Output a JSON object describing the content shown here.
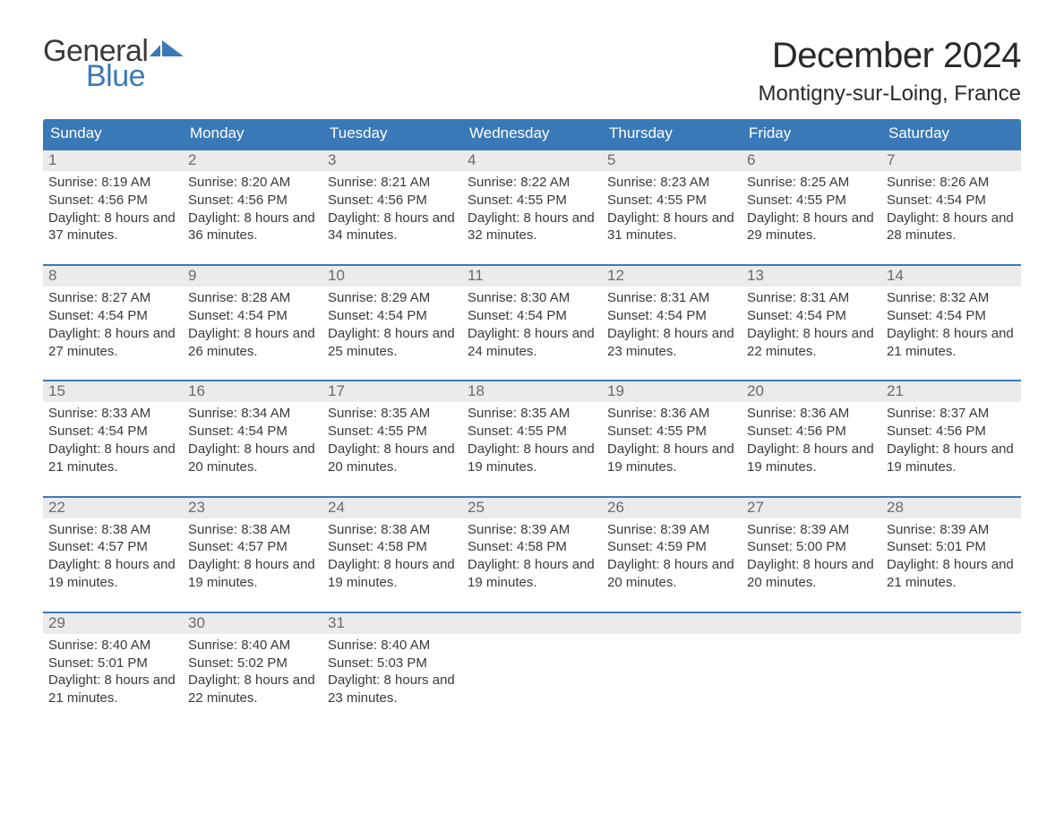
{
  "logo": {
    "word1": "General",
    "word2": "Blue",
    "flag_color": "#3a79b7",
    "text_color_1": "#3a3a3a",
    "text_color_2": "#3a79b7"
  },
  "title": "December 2024",
  "location": "Montigny-sur-Loing, France",
  "colors": {
    "header_bg": "#3a79b7",
    "header_text": "#ffffff",
    "row_accent": "#3a79b7",
    "daynum_bg": "#ebebeb",
    "daynum_text": "#6a6a6a",
    "body_text": "#3a3a3a",
    "background": "#ffffff"
  },
  "typography": {
    "title_fontsize_pt": 30,
    "location_fontsize_pt": 18,
    "header_fontsize_pt": 13,
    "daynum_fontsize_pt": 13,
    "body_fontsize_pt": 11,
    "font_family": "Arial"
  },
  "day_headers": [
    "Sunday",
    "Monday",
    "Tuesday",
    "Wednesday",
    "Thursday",
    "Friday",
    "Saturday"
  ],
  "weeks": [
    [
      {
        "n": "1",
        "sunrise": "8:19 AM",
        "sunset": "4:56 PM",
        "daylight": "8 hours and 37 minutes."
      },
      {
        "n": "2",
        "sunrise": "8:20 AM",
        "sunset": "4:56 PM",
        "daylight": "8 hours and 36 minutes."
      },
      {
        "n": "3",
        "sunrise": "8:21 AM",
        "sunset": "4:56 PM",
        "daylight": "8 hours and 34 minutes."
      },
      {
        "n": "4",
        "sunrise": "8:22 AM",
        "sunset": "4:55 PM",
        "daylight": "8 hours and 32 minutes."
      },
      {
        "n": "5",
        "sunrise": "8:23 AM",
        "sunset": "4:55 PM",
        "daylight": "8 hours and 31 minutes."
      },
      {
        "n": "6",
        "sunrise": "8:25 AM",
        "sunset": "4:55 PM",
        "daylight": "8 hours and 29 minutes."
      },
      {
        "n": "7",
        "sunrise": "8:26 AM",
        "sunset": "4:54 PM",
        "daylight": "8 hours and 28 minutes."
      }
    ],
    [
      {
        "n": "8",
        "sunrise": "8:27 AM",
        "sunset": "4:54 PM",
        "daylight": "8 hours and 27 minutes."
      },
      {
        "n": "9",
        "sunrise": "8:28 AM",
        "sunset": "4:54 PM",
        "daylight": "8 hours and 26 minutes."
      },
      {
        "n": "10",
        "sunrise": "8:29 AM",
        "sunset": "4:54 PM",
        "daylight": "8 hours and 25 minutes."
      },
      {
        "n": "11",
        "sunrise": "8:30 AM",
        "sunset": "4:54 PM",
        "daylight": "8 hours and 24 minutes."
      },
      {
        "n": "12",
        "sunrise": "8:31 AM",
        "sunset": "4:54 PM",
        "daylight": "8 hours and 23 minutes."
      },
      {
        "n": "13",
        "sunrise": "8:31 AM",
        "sunset": "4:54 PM",
        "daylight": "8 hours and 22 minutes."
      },
      {
        "n": "14",
        "sunrise": "8:32 AM",
        "sunset": "4:54 PM",
        "daylight": "8 hours and 21 minutes."
      }
    ],
    [
      {
        "n": "15",
        "sunrise": "8:33 AM",
        "sunset": "4:54 PM",
        "daylight": "8 hours and 21 minutes."
      },
      {
        "n": "16",
        "sunrise": "8:34 AM",
        "sunset": "4:54 PM",
        "daylight": "8 hours and 20 minutes."
      },
      {
        "n": "17",
        "sunrise": "8:35 AM",
        "sunset": "4:55 PM",
        "daylight": "8 hours and 20 minutes."
      },
      {
        "n": "18",
        "sunrise": "8:35 AM",
        "sunset": "4:55 PM",
        "daylight": "8 hours and 19 minutes."
      },
      {
        "n": "19",
        "sunrise": "8:36 AM",
        "sunset": "4:55 PM",
        "daylight": "8 hours and 19 minutes."
      },
      {
        "n": "20",
        "sunrise": "8:36 AM",
        "sunset": "4:56 PM",
        "daylight": "8 hours and 19 minutes."
      },
      {
        "n": "21",
        "sunrise": "8:37 AM",
        "sunset": "4:56 PM",
        "daylight": "8 hours and 19 minutes."
      }
    ],
    [
      {
        "n": "22",
        "sunrise": "8:38 AM",
        "sunset": "4:57 PM",
        "daylight": "8 hours and 19 minutes."
      },
      {
        "n": "23",
        "sunrise": "8:38 AM",
        "sunset": "4:57 PM",
        "daylight": "8 hours and 19 minutes."
      },
      {
        "n": "24",
        "sunrise": "8:38 AM",
        "sunset": "4:58 PM",
        "daylight": "8 hours and 19 minutes."
      },
      {
        "n": "25",
        "sunrise": "8:39 AM",
        "sunset": "4:58 PM",
        "daylight": "8 hours and 19 minutes."
      },
      {
        "n": "26",
        "sunrise": "8:39 AM",
        "sunset": "4:59 PM",
        "daylight": "8 hours and 20 minutes."
      },
      {
        "n": "27",
        "sunrise": "8:39 AM",
        "sunset": "5:00 PM",
        "daylight": "8 hours and 20 minutes."
      },
      {
        "n": "28",
        "sunrise": "8:39 AM",
        "sunset": "5:01 PM",
        "daylight": "8 hours and 21 minutes."
      }
    ],
    [
      {
        "n": "29",
        "sunrise": "8:40 AM",
        "sunset": "5:01 PM",
        "daylight": "8 hours and 21 minutes."
      },
      {
        "n": "30",
        "sunrise": "8:40 AM",
        "sunset": "5:02 PM",
        "daylight": "8 hours and 22 minutes."
      },
      {
        "n": "31",
        "sunrise": "8:40 AM",
        "sunset": "5:03 PM",
        "daylight": "8 hours and 23 minutes."
      },
      null,
      null,
      null,
      null
    ]
  ],
  "labels": {
    "sunrise": "Sunrise:",
    "sunset": "Sunset:",
    "daylight": "Daylight:"
  }
}
